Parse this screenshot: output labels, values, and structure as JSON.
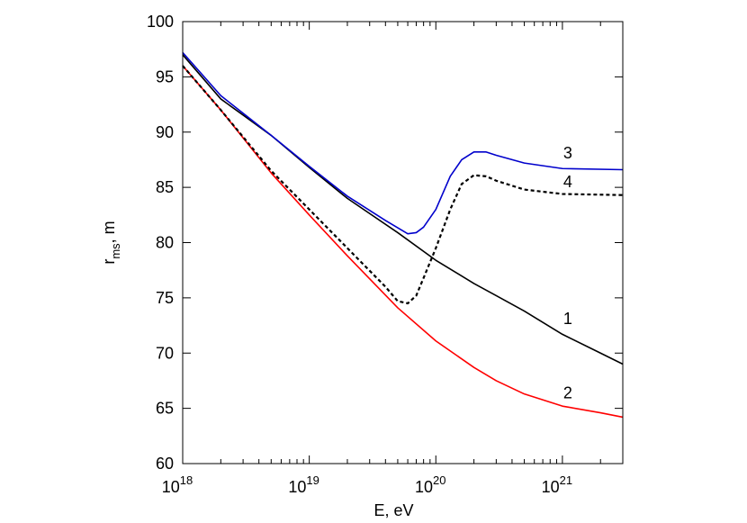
{
  "chart_data": {
    "type": "line",
    "title": "",
    "xlabel": "E, eV",
    "ylabel": {
      "main": "r",
      "sub": "ms",
      "rest": ", m"
    },
    "xscale": "log",
    "xlim": [
      1e+18,
      3e+21
    ],
    "ylim": [
      60,
      100
    ],
    "grid": false,
    "legend": "none",
    "x_ticks": [
      {
        "base": "10",
        "exp": "18",
        "value": 1e+18
      },
      {
        "base": "10",
        "exp": "19",
        "value": 1e+19
      },
      {
        "base": "10",
        "exp": "20",
        "value": 1e+20
      },
      {
        "base": "10",
        "exp": "21",
        "value": 1e+21
      }
    ],
    "y_ticks": [
      "60",
      "65",
      "70",
      "75",
      "80",
      "85",
      "90",
      "95",
      "100"
    ],
    "series": [
      {
        "label": "1",
        "color": "#000000",
        "style": "solid",
        "points": [
          [
            1e+18,
            97.0
          ],
          [
            2e+18,
            93.0
          ],
          [
            5e+18,
            89.7
          ],
          [
            1e+19,
            86.8
          ],
          [
            2e+19,
            84.0
          ],
          [
            5e+19,
            80.9
          ],
          [
            1e+20,
            78.4
          ],
          [
            2e+20,
            76.3
          ],
          [
            3e+20,
            75.2
          ],
          [
            5e+20,
            73.8
          ],
          [
            1e+21,
            71.7
          ],
          [
            2e+21,
            70.0
          ],
          [
            3e+21,
            69.0
          ]
        ]
      },
      {
        "label": "2",
        "color": "#ff0000",
        "style": "solid",
        "points": [
          [
            1e+18,
            96.0
          ],
          [
            2e+18,
            92.0
          ],
          [
            5e+18,
            86.3
          ],
          [
            1e+19,
            82.5
          ],
          [
            2e+19,
            78.8
          ],
          [
            5e+19,
            74.1
          ],
          [
            1e+20,
            71.1
          ],
          [
            2e+20,
            68.7
          ],
          [
            3e+20,
            67.5
          ],
          [
            5e+20,
            66.3
          ],
          [
            1e+21,
            65.2
          ],
          [
            2e+21,
            64.6
          ],
          [
            3e+21,
            64.2
          ]
        ]
      },
      {
        "label": "3",
        "color": "#0000cc",
        "style": "solid",
        "points": [
          [
            1e+18,
            97.2
          ],
          [
            2e+18,
            93.3
          ],
          [
            5e+18,
            89.7
          ],
          [
            1e+19,
            86.9
          ],
          [
            2e+19,
            84.2
          ],
          [
            4e+19,
            82.0
          ],
          [
            6e+19,
            80.8
          ],
          [
            7e+19,
            80.9
          ],
          [
            8e+19,
            81.4
          ],
          [
            1e+20,
            83.0
          ],
          [
            1.3e+20,
            86.0
          ],
          [
            1.6e+20,
            87.5
          ],
          [
            2e+20,
            88.2
          ],
          [
            2.5e+20,
            88.2
          ],
          [
            3e+20,
            87.9
          ],
          [
            5e+20,
            87.2
          ],
          [
            1e+21,
            86.7
          ],
          [
            3e+21,
            86.6
          ]
        ]
      },
      {
        "label": "4",
        "color": "#000000",
        "style": "dashed",
        "points": [
          [
            1e+18,
            96.0
          ],
          [
            2e+18,
            92.0
          ],
          [
            5e+18,
            86.5
          ],
          [
            1e+19,
            83.0
          ],
          [
            2e+19,
            79.5
          ],
          [
            4e+19,
            76.0
          ],
          [
            5e+19,
            74.7
          ],
          [
            6e+19,
            74.5
          ],
          [
            7e+19,
            75.2
          ],
          [
            8e+19,
            76.8
          ],
          [
            1e+20,
            79.5
          ],
          [
            1.3e+20,
            83.0
          ],
          [
            1.6e+20,
            85.3
          ],
          [
            2e+20,
            86.1
          ],
          [
            2.5e+20,
            86.0
          ],
          [
            3e+20,
            85.6
          ],
          [
            5e+20,
            84.8
          ],
          [
            1e+21,
            84.4
          ],
          [
            3e+21,
            84.3
          ]
        ]
      }
    ],
    "annotations": [
      {
        "text": "3",
        "x": 1e+21,
        "y": 88.1
      },
      {
        "text": "4",
        "x": 1e+21,
        "y": 85.5
      },
      {
        "text": "1",
        "x": 1e+21,
        "y": 73.1
      },
      {
        "text": "2",
        "x": 1e+21,
        "y": 66.4
      }
    ]
  }
}
